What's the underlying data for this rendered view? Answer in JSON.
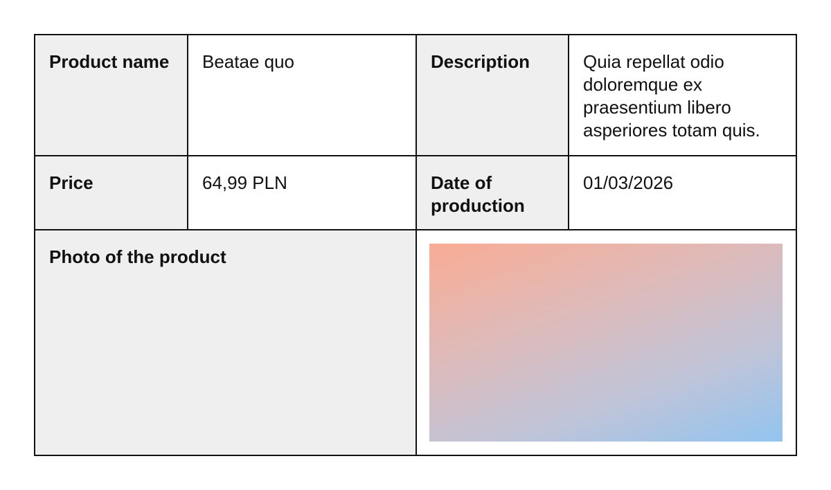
{
  "table": {
    "row1": {
      "name_label": "Product name",
      "name_value": "Beatae quo",
      "description_label": "Description",
      "description_value": "Quia repellat odio doloremque ex praesentium libero asperiores totam quis."
    },
    "row2": {
      "price_label": "Price",
      "price_value": "64,99 PLN",
      "date_label": "Date of production",
      "date_value": "01/03/2026"
    },
    "row3": {
      "photo_label": "Photo of the product"
    }
  },
  "colors": {
    "border": "#111111",
    "label_background": "#efefef",
    "gradient_start": "#faac94",
    "gradient_end": "#92c4f0"
  }
}
